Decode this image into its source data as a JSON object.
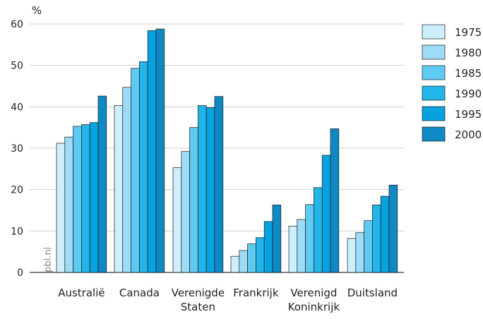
{
  "chart_data": {
    "type": "bar",
    "ylabel": "%",
    "ylim": [
      0,
      60
    ],
    "yticks": [
      0,
      10,
      20,
      30,
      40,
      50,
      60
    ],
    "grid": true,
    "legend_position": "right",
    "watermark": "pbl.nl",
    "categories": [
      [
        "Australië"
      ],
      [
        "Canada"
      ],
      [
        "Verenigde",
        "Staten"
      ],
      [
        "Frankrijk"
      ],
      [
        "Verenigd",
        "Koninkrijk"
      ],
      [
        "Duitsland"
      ]
    ],
    "series": [
      {
        "name": "1975",
        "color": "#cdeefb",
        "values": [
          31.2,
          40.3,
          25.3,
          3.9,
          11.2,
          8.2
        ]
      },
      {
        "name": "1980",
        "color": "#9cdcf7",
        "values": [
          32.7,
          44.7,
          29.2,
          5.3,
          12.8,
          9.6
        ]
      },
      {
        "name": "1985",
        "color": "#5ec9f1",
        "values": [
          35.3,
          49.3,
          35.0,
          6.9,
          16.4,
          12.5
        ]
      },
      {
        "name": "1990",
        "color": "#22b5ea",
        "values": [
          35.7,
          50.9,
          40.3,
          8.4,
          20.5,
          16.3
        ]
      },
      {
        "name": "1995",
        "color": "#06a3e0",
        "values": [
          36.2,
          58.4,
          39.8,
          12.3,
          28.3,
          18.4
        ]
      },
      {
        "name": "2000",
        "color": "#0e89c3",
        "values": [
          42.6,
          58.8,
          42.5,
          16.3,
          34.7,
          21.1
        ]
      }
    ]
  }
}
